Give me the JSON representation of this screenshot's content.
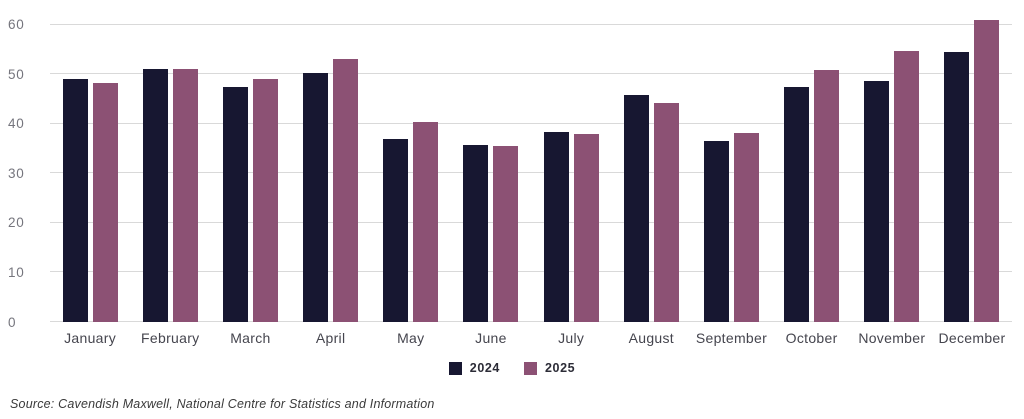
{
  "chart_data": {
    "type": "bar",
    "categories": [
      "January",
      "February",
      "March",
      "April",
      "May",
      "June",
      "July",
      "August",
      "September",
      "October",
      "November",
      "December"
    ],
    "series": [
      {
        "name": "2024",
        "color": "#171731",
        "values": [
          49.0,
          51.1,
          47.5,
          50.3,
          36.9,
          35.7,
          38.4,
          45.9,
          36.5,
          47.4,
          48.7,
          54.5
        ]
      },
      {
        "name": "2025",
        "color": "#8C5174",
        "values": [
          48.2,
          51.0,
          49.0,
          53.2,
          40.3,
          35.6,
          38.0,
          44.3,
          38.2,
          50.8,
          54.8,
          60.9
        ]
      }
    ],
    "title": "",
    "xlabel": "",
    "ylabel": "",
    "ylim": [
      0,
      62
    ],
    "yticks": [
      0,
      10,
      20,
      30,
      40,
      50,
      60
    ],
    "grid": true,
    "legend_position": "bottom-center"
  },
  "source_note": "Source: Cavendish Maxwell, National Centre for Statistics and Information",
  "colors": {
    "series_2024": "#171731",
    "series_2025": "#8C5174",
    "gridline": "#d9d9d9",
    "y_tick_text": "#75757d",
    "x_label_text": "#45454e",
    "legend_text": "#2c2c37",
    "source_text": "#3a3a3a",
    "background": "#ffffff"
  }
}
